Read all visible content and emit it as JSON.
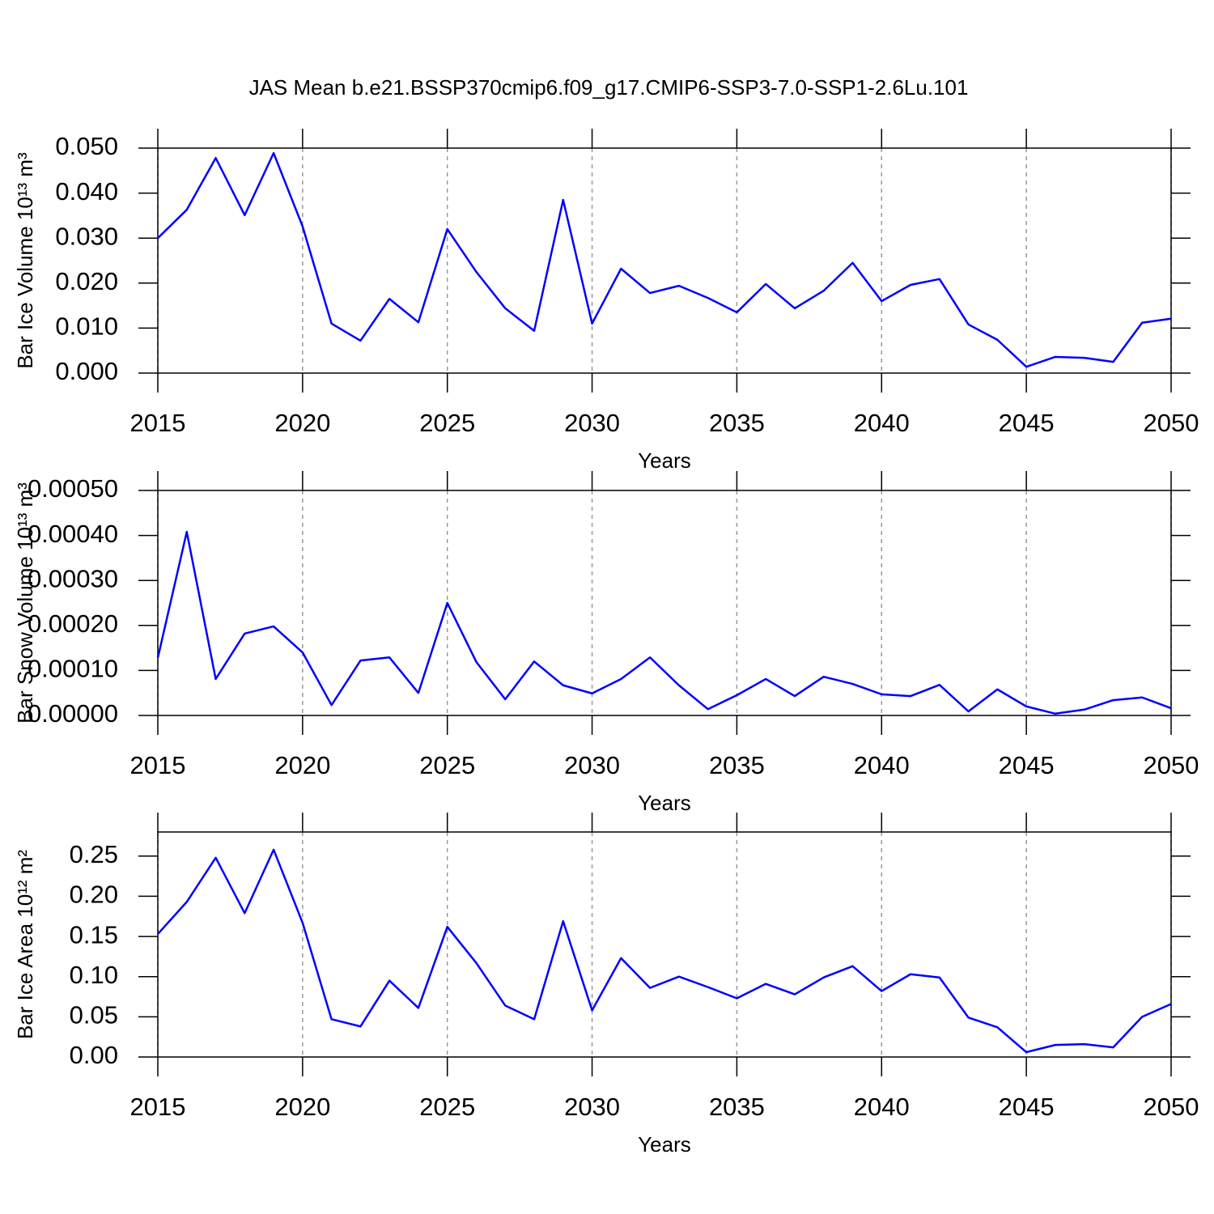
{
  "chart_data": [
    {
      "type": "line",
      "title": "JAS Mean b.e21.BSSP370cmip6.f09_g17.CMIP6-SSP3-7.0-SSP1-2.6Lu.101",
      "xlabel": "Years",
      "ylabel": "Bar Ice Volume 10¹³ m³",
      "color": "#0000ff",
      "grid": true,
      "x": [
        2015,
        2016,
        2017,
        2018,
        2019,
        2020,
        2021,
        2022,
        2023,
        2024,
        2025,
        2026,
        2027,
        2028,
        2029,
        2030,
        2031,
        2032,
        2033,
        2034,
        2035,
        2036,
        2037,
        2038,
        2039,
        2040,
        2041,
        2042,
        2043,
        2044,
        2045,
        2046,
        2047,
        2048,
        2049,
        2050
      ],
      "values": [
        0.03,
        0.0363,
        0.0478,
        0.0351,
        0.0489,
        0.0326,
        0.011,
        0.0072,
        0.0165,
        0.0113,
        0.032,
        0.0225,
        0.0144,
        0.0094,
        0.0385,
        0.011,
        0.0232,
        0.0178,
        0.0194,
        0.0167,
        0.0135,
        0.0198,
        0.0144,
        0.0183,
        0.0245,
        0.016,
        0.0196,
        0.0209,
        0.0108,
        0.0074,
        0.0014,
        0.0036,
        0.0034,
        0.0025,
        0.0112,
        0.0121
      ],
      "xlim": [
        2015,
        2050
      ],
      "xticks": [
        2015,
        2020,
        2025,
        2030,
        2035,
        2040,
        2045,
        2050
      ],
      "ylim": [
        0,
        0.05
      ],
      "yticks": [
        {
          "value": 0,
          "label": "0.000"
        },
        {
          "value": 0.01,
          "label": "0.010"
        },
        {
          "value": 0.02,
          "label": "0.020"
        },
        {
          "value": 0.03,
          "label": "0.030"
        },
        {
          "value": 0.04,
          "label": "0.040"
        },
        {
          "value": 0.05,
          "label": "0.050"
        }
      ]
    },
    {
      "type": "line",
      "xlabel": "Years",
      "ylabel": "Bar Snow Volume 10¹³ m³",
      "color": "#0000ff",
      "grid": true,
      "x": [
        2015,
        2016,
        2017,
        2018,
        2019,
        2020,
        2021,
        2022,
        2023,
        2024,
        2025,
        2026,
        2027,
        2028,
        2029,
        2030,
        2031,
        2032,
        2033,
        2034,
        2035,
        2036,
        2037,
        2038,
        2039,
        2040,
        2041,
        2042,
        2043,
        2044,
        2045,
        2046,
        2047,
        2048,
        2049,
        2050
      ],
      "values": [
        0.000128,
        0.000408,
        8.1e-05,
        0.000182,
        0.000198,
        0.00014,
        2.3e-05,
        0.000122,
        0.000129,
        5e-05,
        0.00025,
        0.000119,
        3.6e-05,
        0.00012,
        6.7e-05,
        4.9e-05,
        8.1e-05,
        0.000129,
        6.7e-05,
        1.4e-05,
        4.5e-05,
        8.1e-05,
        4.3e-05,
        8.6e-05,
        7e-05,
        4.7e-05,
        4.3e-05,
        6.8e-05,
        9e-06,
        5.8e-05,
        2e-05,
        4e-06,
        1.3e-05,
        3.4e-05,
        4e-05,
        1.6e-05
      ],
      "xlim": [
        2015,
        2050
      ],
      "xticks": [
        2015,
        2020,
        2025,
        2030,
        2035,
        2040,
        2045,
        2050
      ],
      "ylim": [
        0,
        0.0005
      ],
      "yticks": [
        {
          "value": 0,
          "label": "0.00000"
        },
        {
          "value": 0.0001,
          "label": "0.00010"
        },
        {
          "value": 0.0002,
          "label": "0.00020"
        },
        {
          "value": 0.0003,
          "label": "0.00030"
        },
        {
          "value": 0.0004,
          "label": "0.00040"
        },
        {
          "value": 0.0005,
          "label": "0.00050"
        }
      ]
    },
    {
      "type": "line",
      "xlabel": "Years",
      "ylabel": "Bar Ice Area 10¹² m²",
      "color": "#0000ff",
      "grid": true,
      "x": [
        2015,
        2016,
        2017,
        2018,
        2019,
        2020,
        2021,
        2022,
        2023,
        2024,
        2025,
        2026,
        2027,
        2028,
        2029,
        2030,
        2031,
        2032,
        2033,
        2034,
        2035,
        2036,
        2037,
        2038,
        2039,
        2040,
        2041,
        2042,
        2043,
        2044,
        2045,
        2046,
        2047,
        2048,
        2049,
        2050
      ],
      "values": [
        0.153,
        0.193,
        0.248,
        0.179,
        0.258,
        0.167,
        0.047,
        0.038,
        0.095,
        0.061,
        0.162,
        0.117,
        0.064,
        0.047,
        0.169,
        0.058,
        0.123,
        0.086,
        0.1,
        0.087,
        0.073,
        0.091,
        0.078,
        0.099,
        0.113,
        0.082,
        0.103,
        0.099,
        0.049,
        0.037,
        0.006,
        0.015,
        0.016,
        0.012,
        0.05,
        0.066
      ],
      "xlim": [
        2015,
        2050
      ],
      "xticks": [
        2015,
        2020,
        2025,
        2030,
        2035,
        2040,
        2045,
        2050
      ],
      "ylim": [
        0,
        0.28
      ],
      "yticks": [
        {
          "value": 0,
          "label": "0.00"
        },
        0.05,
        {
          "value": 0.1,
          "label": "0.10"
        },
        0.15,
        {
          "value": 0.2,
          "label": "0.20"
        },
        0.25
      ]
    }
  ]
}
